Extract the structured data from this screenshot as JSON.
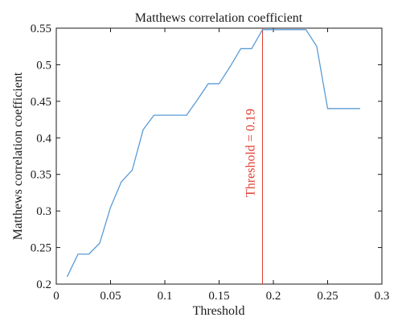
{
  "chart_data": {
    "type": "line",
    "title": "Matthews correlation coefficient",
    "xlabel": "Threshold",
    "ylabel": "Matthews correlation coefficient",
    "xlim": [
      0,
      0.3
    ],
    "ylim": [
      0.2,
      0.55
    ],
    "x_ticks": [
      0,
      0.05,
      0.1,
      0.15,
      0.2,
      0.25,
      0.3
    ],
    "x_tick_labels": [
      "0",
      "0.05",
      "0.1",
      "0.15",
      "0.2",
      "0.25",
      "0.3"
    ],
    "y_ticks": [
      0.2,
      0.25,
      0.3,
      0.35,
      0.4,
      0.45,
      0.5,
      0.55
    ],
    "y_tick_labels": [
      "0.2",
      "0.25",
      "0.3",
      "0.35",
      "0.4",
      "0.45",
      "0.5",
      "0.55"
    ],
    "grid": false,
    "series": [
      {
        "color": "#5a9bd5",
        "x": [
          0.01,
          0.02,
          0.03,
          0.04,
          0.05,
          0.06,
          0.07,
          0.08,
          0.09,
          0.1,
          0.11,
          0.12,
          0.13,
          0.14,
          0.15,
          0.16,
          0.17,
          0.18,
          0.19,
          0.2,
          0.21,
          0.22,
          0.23,
          0.24,
          0.25,
          0.26,
          0.27,
          0.28
        ],
        "y": [
          0.21,
          0.241,
          0.241,
          0.256,
          0.305,
          0.34,
          0.356,
          0.411,
          0.431,
          0.431,
          0.431,
          0.431,
          0.452,
          0.474,
          0.474,
          0.497,
          0.522,
          0.522,
          0.548,
          0.548,
          0.548,
          0.548,
          0.548,
          0.525,
          0.44,
          0.44,
          0.44,
          0.44
        ]
      }
    ],
    "annotations": [
      {
        "type": "vline",
        "x": 0.19,
        "color": "#e03a2f",
        "label": "Threshold = 0.19"
      }
    ]
  }
}
